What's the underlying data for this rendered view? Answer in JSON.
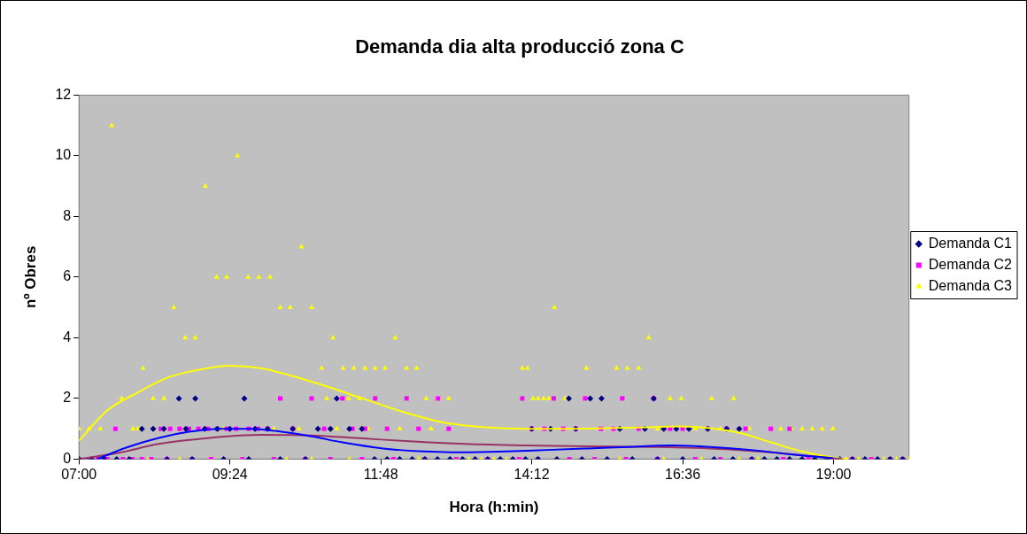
{
  "chart_data": {
    "type": "scatter",
    "title": "Demanda dia alta producció zona C",
    "xlabel": "Hora (h:min)",
    "ylabel": "nº Obres",
    "xlim": [
      7,
      20.2
    ],
    "xticks": [
      {
        "value": 7,
        "label": "07:00"
      },
      {
        "value": 9.4,
        "label": "09:24"
      },
      {
        "value": 11.8,
        "label": "11:48"
      },
      {
        "value": 14.2,
        "label": "14:12"
      },
      {
        "value": 16.6,
        "label": "16:36"
      },
      {
        "value": 19,
        "label": "19:00"
      }
    ],
    "ylim": [
      0,
      12
    ],
    "yticks": [
      0,
      2,
      4,
      6,
      8,
      10,
      12
    ],
    "grid": false,
    "legend": "right",
    "series": [
      {
        "name": "Demanda C1",
        "color": "#000080",
        "marker": "diamond",
        "x": [
          8.0,
          8.18,
          8.35,
          8.59,
          8.7,
          8.85,
          9.0,
          9.2,
          9.4,
          9.63,
          9.8,
          10.0,
          10.4,
          10.8,
          11.0,
          11.1,
          11.3,
          11.5,
          14.2,
          14.5,
          14.79,
          14.9,
          15.13,
          15.31,
          15.6,
          16.0,
          16.14,
          16.3,
          16.5,
          16.7,
          17.0,
          17.3,
          17.5,
          7.0,
          7.2,
          7.4,
          7.6,
          7.8,
          8.4,
          8.8,
          9.3,
          9.7,
          10.2,
          10.6,
          11.7,
          11.9,
          12.1,
          12.3,
          12.5,
          12.7,
          12.9,
          13.1,
          13.3,
          13.5,
          13.7,
          13.9,
          14.1,
          14.3,
          14.6,
          15.0,
          15.4,
          15.8,
          16.2,
          16.6,
          17.1,
          17.4,
          17.7,
          17.9,
          18.1,
          18.3,
          18.5,
          18.7,
          18.9,
          19.1,
          19.3,
          19.5,
          19.7,
          19.9,
          20.1
        ],
        "values": [
          1,
          1,
          1,
          2,
          1,
          2,
          1,
          1,
          1,
          2,
          1,
          1,
          1,
          1,
          1,
          2,
          1,
          1,
          1,
          1,
          2,
          1,
          2,
          2,
          1,
          1,
          2,
          1,
          1,
          1,
          1,
          1,
          1,
          0,
          0,
          0,
          0,
          0,
          0,
          0,
          0,
          0,
          0,
          0,
          0,
          0,
          0,
          0,
          0,
          0,
          0,
          0,
          0,
          0,
          0,
          0,
          0,
          0,
          0,
          0,
          0,
          0,
          0,
          0,
          0,
          0,
          0,
          0,
          0,
          0,
          0,
          0,
          0,
          0,
          0,
          0,
          0,
          0,
          0
        ]
      },
      {
        "name": "Demanda C2",
        "color": "#ff00ff",
        "marker": "square",
        "x": [
          7.58,
          8.3,
          8.45,
          8.6,
          8.75,
          8.9,
          9.05,
          9.2,
          9.35,
          9.5,
          9.7,
          9.85,
          10.0,
          10.2,
          10.4,
          10.7,
          10.9,
          11.19,
          11.35,
          11.55,
          11.71,
          11.9,
          12.21,
          12.4,
          12.71,
          12.88,
          14.05,
          14.2,
          14.4,
          14.55,
          14.7,
          14.9,
          15.05,
          15.3,
          15.64,
          15.5,
          15.9,
          16.14,
          16.4,
          16.6,
          17.0,
          17.3,
          17.6,
          18.0,
          18.3,
          7.0,
          7.15,
          7.3,
          7.45,
          7.7,
          7.85,
          8.0,
          8.15,
          8.4,
          8.8,
          9.1,
          9.6,
          10.1,
          10.6,
          11.0,
          11.5,
          12.0,
          12.5,
          13.0,
          13.5,
          14.0,
          14.3,
          14.8,
          15.2,
          15.7,
          16.2,
          16.8,
          17.2,
          17.7,
          18.2,
          18.6,
          19.0,
          19.3,
          19.6,
          19.9,
          20.1
        ],
        "values": [
          1,
          1,
          1,
          1,
          1,
          1,
          1,
          1,
          1,
          1,
          1,
          1,
          1,
          2,
          1,
          2,
          1,
          2,
          1,
          1,
          2,
          1,
          2,
          1,
          2,
          1,
          2,
          1,
          1,
          2,
          1,
          1,
          2,
          1,
          2,
          1,
          1,
          2,
          1,
          1,
          1,
          1,
          1,
          1,
          1,
          0,
          0,
          0,
          0,
          0,
          0,
          0,
          0,
          0,
          0,
          0,
          0,
          0,
          0,
          0,
          0,
          0,
          0,
          0,
          0,
          0,
          0,
          0,
          0,
          0,
          0,
          0,
          0,
          0,
          0,
          0,
          0,
          0,
          0,
          0,
          0
        ]
      },
      {
        "name": "Demanda C3",
        "color": "#ffff00",
        "marker": "triangle",
        "x": [
          7.0,
          7.16,
          7.34,
          7.52,
          7.68,
          7.86,
          7.94,
          8.02,
          8.18,
          8.35,
          8.51,
          8.69,
          8.85,
          9.01,
          9.19,
          9.35,
          9.52,
          9.69,
          9.86,
          10.04,
          10.2,
          10.36,
          10.54,
          10.7,
          10.86,
          10.94,
          11.04,
          11.2,
          11.29,
          11.37,
          11.46,
          11.55,
          11.71,
          11.87,
          12.03,
          12.21,
          12.37,
          12.52,
          12.73,
          12.88,
          8.3,
          8.45,
          9.3,
          9.7,
          10.1,
          10.5,
          11.1,
          11.6,
          12.1,
          12.6,
          14.05,
          14.13,
          14.22,
          14.3,
          14.39,
          14.47,
          14.56,
          14.73,
          15.07,
          15.55,
          15.72,
          15.9,
          16.06,
          16.4,
          16.58,
          17.06,
          17.41,
          14.9,
          15.3,
          16.2,
          16.8,
          17.2,
          17.66,
          17.99,
          18.16,
          18.33,
          18.5,
          18.66,
          18.82,
          18.99,
          7.8,
          8.1,
          8.6,
          9.1,
          9.6,
          10.3,
          10.7,
          11.3,
          11.9,
          12.4,
          13.0,
          13.2,
          13.4,
          13.6,
          13.8,
          14.0,
          14.6,
          15.2,
          15.6,
          16.3,
          16.9,
          17.5,
          17.8,
          19.2,
          19.4,
          19.6,
          19.8,
          20.0,
          20.2
        ],
        "values": [
          1,
          1,
          1,
          11,
          2,
          1,
          1,
          3,
          2,
          2,
          5,
          4,
          4,
          9,
          6,
          6,
          10,
          6,
          6,
          6,
          5,
          5,
          7,
          5,
          3,
          2,
          4,
          3,
          2,
          3,
          2,
          3,
          3,
          3,
          4,
          3,
          3,
          2,
          2,
          2,
          1,
          null,
          1,
          null,
          1,
          1,
          1,
          1,
          1,
          1,
          3,
          3,
          2,
          2,
          2,
          2,
          5,
          2,
          3,
          3,
          3,
          3,
          4,
          2,
          2,
          2,
          2,
          1,
          1,
          1,
          1,
          1,
          1,
          1,
          1,
          1,
          1,
          1,
          1,
          1,
          0,
          0,
          0,
          0,
          0,
          0,
          0,
          0,
          0,
          0,
          0,
          0,
          0,
          0,
          0,
          0,
          0,
          0,
          0,
          0,
          0,
          0,
          0,
          0,
          0,
          0,
          0,
          0,
          0
        ]
      },
      {
        "type": "line",
        "color": "#0000ff",
        "x": [
          7.29,
          7.78,
          8.27,
          8.75,
          9.24,
          9.73,
          10.22,
          10.7,
          11.19,
          11.84,
          12.49,
          13.14,
          13.79,
          14.44,
          15.09,
          15.74,
          16.39,
          17.04,
          17.69,
          18.34,
          18.99
        ],
        "values": [
          0,
          0.4,
          0.7,
          0.9,
          1.0,
          1.0,
          0.9,
          0.75,
          0.55,
          0.35,
          0.25,
          0.22,
          0.25,
          0.3,
          0.35,
          0.4,
          0.45,
          0.4,
          0.3,
          0.15,
          0.03
        ]
      },
      {
        "type": "line",
        "color": "#993366",
        "x": [
          7.0,
          7.62,
          8.27,
          9.08,
          9.89,
          10.7,
          11.51,
          12.32,
          13.14,
          14.11,
          15.09,
          16.06,
          17.04,
          18.01,
          18.82,
          19.15
        ],
        "values": [
          0,
          0.2,
          0.5,
          0.7,
          0.8,
          0.78,
          0.68,
          0.58,
          0.5,
          0.45,
          0.42,
          0.4,
          0.35,
          0.22,
          0.06,
          0
        ]
      },
      {
        "type": "line",
        "color": "#ffff00",
        "x": [
          7.0,
          7.45,
          7.94,
          8.43,
          8.92,
          9.4,
          9.89,
          10.38,
          10.86,
          11.51,
          12.16,
          12.81,
          13.46,
          14.11,
          14.76,
          15.41,
          16.06,
          16.55,
          17.04,
          17.53,
          18.01,
          18.5,
          18.99,
          19.24
        ],
        "values": [
          0.6,
          1.6,
          2.2,
          2.7,
          2.95,
          3.08,
          3.0,
          2.75,
          2.45,
          2.0,
          1.55,
          1.2,
          1.05,
          1.0,
          1.0,
          1.02,
          1.05,
          1.08,
          1.02,
          0.85,
          0.55,
          0.25,
          0.05,
          0
        ]
      }
    ]
  }
}
